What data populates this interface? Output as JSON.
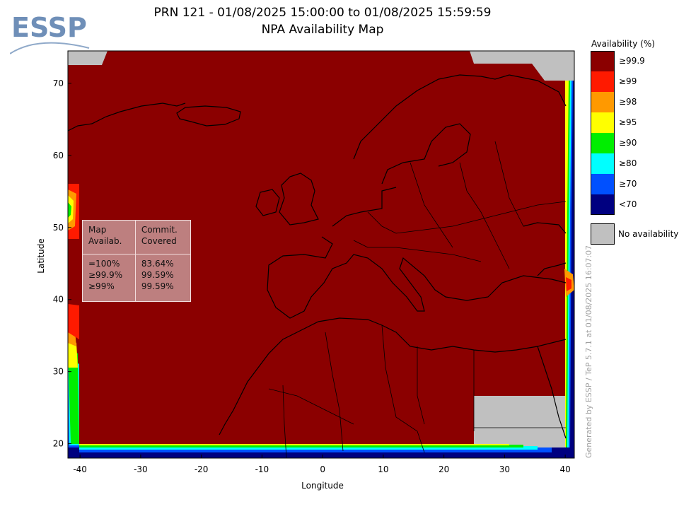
{
  "title_line1": "PRN 121 - 01/08/2025 15:00:00 to 01/08/2025 15:59:59",
  "title_line2": "NPA Availability Map",
  "logo_text": "ESSP",
  "x_axis": {
    "label": "Longitude",
    "range": [
      -42,
      41.5
    ],
    "ticks": [
      -40,
      -30,
      -20,
      -10,
      0,
      10,
      20,
      30,
      40
    ]
  },
  "y_axis": {
    "label": "Latitude",
    "range": [
      18,
      74.5
    ],
    "ticks": [
      20,
      30,
      40,
      50,
      60,
      70
    ]
  },
  "legend": {
    "title": "Availability (%)",
    "items": [
      {
        "label": "≥99.9",
        "color": "#8b0000"
      },
      {
        "label": "≥99",
        "color": "#ff1a00"
      },
      {
        "label": "≥98",
        "color": "#ff9900"
      },
      {
        "label": "≥95",
        "color": "#ffff00"
      },
      {
        "label": "≥90",
        "color": "#00ee00"
      },
      {
        "label": "≥80",
        "color": "#00ffff"
      },
      {
        "label": "≥70",
        "color": "#0050ff"
      },
      {
        "label": "<70",
        "color": "#000080"
      }
    ],
    "no_availability": {
      "label": "No availability",
      "color": "#c0c0c0"
    }
  },
  "stats": {
    "col1_header": [
      "Map",
      "Availab."
    ],
    "col2_header": [
      "Commit.",
      "Covered"
    ],
    "rows": [
      {
        "level": "=100%",
        "value": "83.64%"
      },
      {
        "level": "≥99.9%",
        "value": "99.59%"
      },
      {
        "level": "≥99%",
        "value": "99.59%"
      }
    ]
  },
  "footer": "Generated by ESSP / TeP 5.7.1 at 01/08/2025 16:07:07"
}
